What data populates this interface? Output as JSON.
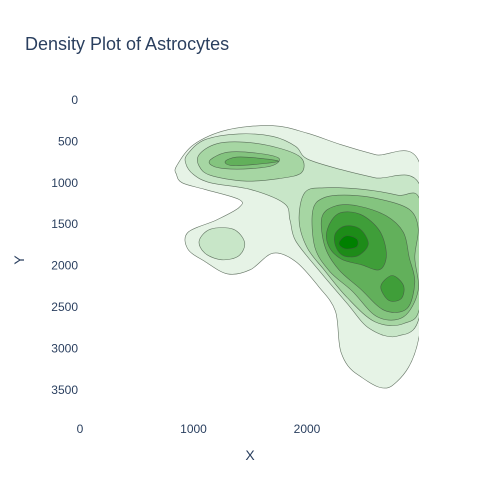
{
  "chart_data": {
    "type": "contour",
    "title": "Density Plot of Astrocytes",
    "xlabel": "X",
    "ylabel": "Y",
    "xlim": [
      0,
      3000
    ],
    "ylim": [
      0,
      3850
    ],
    "y_reversed": true,
    "x_ticks": [
      0,
      1000,
      2000
    ],
    "y_ticks": [
      0,
      500,
      1000,
      1500,
      2000,
      2500,
      3000,
      3500
    ],
    "fill_colors": [
      "#e6f3e6",
      "#c8e6c8",
      "#a6d6a3",
      "#84c47f",
      "#62b05b",
      "#3f9e39",
      "#1d8b18",
      "#008000"
    ],
    "line_color": "#445544",
    "contour_levels": [
      {
        "level": 1,
        "polygons": [
          [
            [
              850,
              800
            ],
            [
              1000,
              540
            ],
            [
              1300,
              360
            ],
            [
              1700,
              310
            ],
            [
              2000,
              400
            ],
            [
              2300,
              540
            ],
            [
              2600,
              660
            ],
            [
              3000,
              800
            ],
            [
              3000,
              2750
            ],
            [
              2750,
              3450
            ],
            [
              2450,
              3320
            ],
            [
              2300,
              3050
            ],
            [
              2250,
              2550
            ],
            [
              2100,
              2250
            ],
            [
              1900,
              1950
            ],
            [
              1700,
              1850
            ],
            [
              1500,
              2050
            ],
            [
              1300,
              2100
            ],
            [
              1100,
              1950
            ],
            [
              950,
              1800
            ],
            [
              950,
              1600
            ],
            [
              1200,
              1450
            ],
            [
              1400,
              1300
            ],
            [
              1400,
              1200
            ],
            [
              1100,
              1080
            ],
            [
              900,
              1000
            ],
            [
              850,
              900
            ]
          ]
        ]
      },
      {
        "level": 2,
        "polygons": [
          [
            [
              950,
              650
            ],
            [
              1100,
              480
            ],
            [
              1400,
              410
            ],
            [
              1700,
              440
            ],
            [
              1900,
              560
            ],
            [
              2000,
              710
            ],
            [
              2300,
              840
            ],
            [
              2600,
              940
            ],
            [
              3000,
              1050
            ],
            [
              3000,
              2550
            ],
            [
              2800,
              2850
            ],
            [
              2550,
              2760
            ],
            [
              2350,
              2450
            ],
            [
              2100,
              2050
            ],
            [
              1900,
              1700
            ],
            [
              1850,
              1450
            ],
            [
              1800,
              1250
            ],
            [
              1500,
              1080
            ],
            [
              1150,
              1000
            ],
            [
              1000,
              900
            ],
            [
              930,
              760
            ]
          ],
          [
            [
              1050,
              1700
            ],
            [
              1150,
              1560
            ],
            [
              1350,
              1560
            ],
            [
              1450,
              1720
            ],
            [
              1400,
              1880
            ],
            [
              1250,
              1930
            ],
            [
              1100,
              1850
            ]
          ]
        ]
      },
      {
        "level": 3,
        "polygons": [
          [
            [
              1050,
              660
            ],
            [
              1200,
              530
            ],
            [
              1450,
              510
            ],
            [
              1750,
              580
            ],
            [
              1950,
              700
            ],
            [
              1950,
              880
            ],
            [
              1750,
              950
            ],
            [
              1450,
              980
            ],
            [
              1150,
              910
            ],
            [
              1050,
              800
            ]
          ],
          [
            [
              1980,
              1120
            ],
            [
              2150,
              1060
            ],
            [
              2500,
              1080
            ],
            [
              2800,
              1150
            ],
            [
              3000,
              1240
            ],
            [
              3000,
              2450
            ],
            [
              2850,
              2700
            ],
            [
              2600,
              2680
            ],
            [
              2350,
              2380
            ],
            [
              2150,
              2050
            ],
            [
              2000,
              1780
            ],
            [
              1930,
              1450
            ]
          ]
        ]
      },
      {
        "level": 4,
        "polygons": [
          [
            [
              1150,
              720
            ],
            [
              1300,
              630
            ],
            [
              1550,
              640
            ],
            [
              1750,
              700
            ],
            [
              1700,
              790
            ],
            [
              1500,
              830
            ],
            [
              1280,
              830
            ],
            [
              1160,
              790
            ]
          ],
          [
            [
              2050,
              1340
            ],
            [
              2150,
              1180
            ],
            [
              2380,
              1150
            ],
            [
              2650,
              1200
            ],
            [
              2900,
              1320
            ],
            [
              2980,
              1550
            ],
            [
              2950,
              1900
            ],
            [
              2980,
              2300
            ],
            [
              2850,
              2620
            ],
            [
              2620,
              2620
            ],
            [
              2400,
              2310
            ],
            [
              2200,
              2070
            ],
            [
              2070,
              1780
            ]
          ]
        ]
      },
      {
        "level": 5,
        "polygons": [
          [
            [
              1280,
              740
            ],
            [
              1380,
              690
            ],
            [
              1560,
              700
            ],
            [
              1750,
              740
            ],
            [
              1530,
              780
            ],
            [
              1330,
              790
            ]
          ],
          [
            [
              2130,
              1420
            ],
            [
              2250,
              1280
            ],
            [
              2450,
              1280
            ],
            [
              2700,
              1400
            ],
            [
              2850,
              1600
            ],
            [
              2900,
              1900
            ],
            [
              2950,
              2200
            ],
            [
              2880,
              2520
            ],
            [
              2680,
              2540
            ],
            [
              2470,
              2280
            ],
            [
              2280,
              2050
            ],
            [
              2160,
              1780
            ]
          ]
        ]
      },
      {
        "level": 6,
        "polygons": [
          [
            [
              2180,
              1560
            ],
            [
              2280,
              1370
            ],
            [
              2470,
              1380
            ],
            [
              2640,
              1580
            ],
            [
              2700,
              1870
            ],
            [
              2640,
              2050
            ],
            [
              2480,
              1990
            ],
            [
              2300,
              1920
            ],
            [
              2190,
              1760
            ]
          ],
          [
            [
              2650,
              2250
            ],
            [
              2750,
              2120
            ],
            [
              2850,
              2240
            ],
            [
              2830,
              2400
            ],
            [
              2720,
              2420
            ]
          ]
        ]
      },
      {
        "level": 7,
        "polygons": [
          [
            [
              2250,
              1610
            ],
            [
              2340,
              1520
            ],
            [
              2470,
              1560
            ],
            [
              2540,
              1740
            ],
            [
              2450,
              1880
            ],
            [
              2320,
              1880
            ],
            [
              2250,
              1760
            ]
          ]
        ]
      },
      {
        "level": 8,
        "polygons": [
          [
            [
              2290,
              1700
            ],
            [
              2350,
              1640
            ],
            [
              2440,
              1680
            ],
            [
              2440,
              1770
            ],
            [
              2350,
              1800
            ],
            [
              2290,
              1760
            ]
          ]
        ]
      }
    ]
  }
}
